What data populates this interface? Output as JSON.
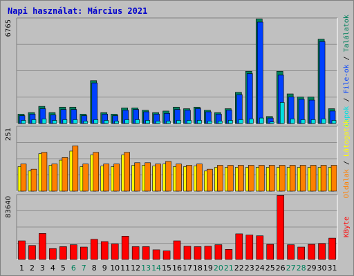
{
  "colors": {
    "hits": "#00805c",
    "files": "#0040ff",
    "pages": "#00e0e0",
    "visits": "#ff8000",
    "sites": "#ffff00",
    "kbytes": "#ff0000",
    "weekday": "#000000",
    "weekend": "#00805c"
  },
  "chart_data": {
    "type": "bar",
    "title": "Napi használat: Március 2021",
    "categories": [
      "1",
      "2",
      "3",
      "4",
      "5",
      "6",
      "7",
      "8",
      "9",
      "10",
      "11",
      "12",
      "13",
      "14",
      "15",
      "16",
      "17",
      "18",
      "19",
      "20",
      "21",
      "22",
      "23",
      "24",
      "25",
      "26",
      "27",
      "28",
      "29",
      "30",
      "31"
    ],
    "weekend_days": [
      "6",
      "7",
      "13",
      "14",
      "20",
      "21",
      "27",
      "28"
    ],
    "panels": [
      {
        "id": "hits-files-pages",
        "max_label": "6765",
        "ylim": [
          0,
          6765
        ],
        "legend": [
          "Találatok",
          "File-ok",
          "Lapok"
        ],
        "series": [
          {
            "name": "Találatok",
            "values": [
              600,
              700,
              1100,
              700,
              1050,
              1050,
              600,
              2750,
              700,
              600,
              1000,
              1000,
              850,
              700,
              800,
              1050,
              950,
              1050,
              850,
              700,
              950,
              2000,
              3350,
              6700,
              450,
              3350,
              1900,
              1700,
              1700,
              5400,
              950
            ]
          },
          {
            "name": "File-ok",
            "values": [
              500,
              600,
              950,
              550,
              900,
              900,
              500,
              2600,
              600,
              500,
              850,
              900,
              750,
              600,
              650,
              900,
              850,
              950,
              750,
              600,
              850,
              1850,
              3200,
              6500,
              350,
              3100,
              1700,
              1550,
              1500,
              5250,
              800
            ]
          },
          {
            "name": "Lapok",
            "values": [
              200,
              250,
              300,
              200,
              250,
              250,
              150,
              250,
              200,
              150,
              250,
              250,
              200,
              150,
              150,
              200,
              200,
              200,
              150,
              150,
              200,
              250,
              300,
              350,
              100,
              1350,
              300,
              250,
              250,
              300,
              200
            ]
          }
        ]
      },
      {
        "id": "visits-sites",
        "max_label": "251",
        "ylim": [
          0,
          251
        ],
        "legend": [
          "Látogatók",
          "Oldalak"
        ],
        "series": [
          {
            "name": "Látogatók",
            "values": [
              105,
              85,
              150,
              105,
              130,
              175,
              105,
              150,
              105,
              105,
              150,
              110,
              110,
              105,
              115,
              105,
              100,
              105,
              85,
              100,
              100,
              100,
              100,
              100,
              100,
              100,
              100,
              100,
              100,
              100,
              100
            ]
          },
          {
            "name": "Oldalak",
            "values": [
              95,
              78,
              145,
              100,
              120,
              155,
              95,
              140,
              97,
              95,
              140,
              100,
              100,
              97,
              105,
              95,
              95,
              97,
              78,
              92,
              92,
              92,
              92,
              92,
              92,
              92,
              92,
              92,
              92,
              92,
              92
            ]
          }
        ]
      },
      {
        "id": "kbytes",
        "max_label": "83640",
        "ylim": [
          0,
          83640
        ],
        "legend": [
          "KByte"
        ],
        "series": [
          {
            "name": "KByte",
            "values": [
              24000,
              18000,
              33500,
              14000,
              16500,
              19000,
              16000,
              26000,
              23000,
              20000,
              30000,
              16500,
              16500,
              12500,
              11000,
              24000,
              17000,
              16500,
              17000,
              19000,
              13000,
              33000,
              31500,
              30500,
              19500,
              82500,
              19000,
              16000,
              19500,
              20500,
              27500
            ]
          }
        ]
      }
    ]
  }
}
